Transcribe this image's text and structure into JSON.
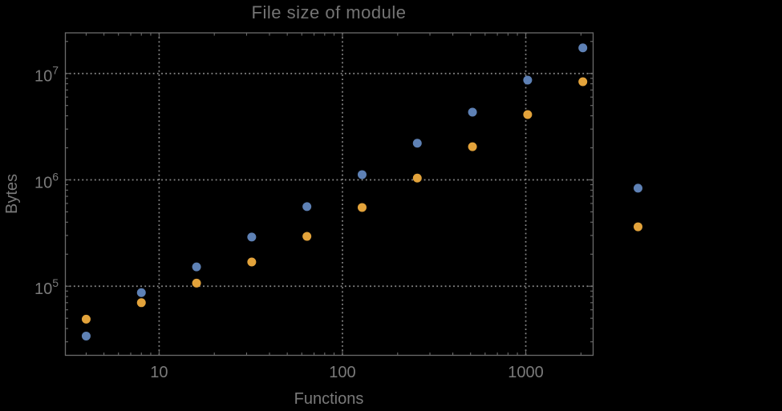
{
  "window": {
    "background": "#000000"
  },
  "chart_data": {
    "type": "scatter",
    "title": "File size of module",
    "xlabel": "Functions",
    "ylabel": "Bytes",
    "x_scale": "log",
    "y_scale": "log",
    "xlim": [
      3.08,
      2330
    ],
    "ylim": [
      22400,
      24100000
    ],
    "grid": "dotted gray lines at decades, both axes",
    "legend_position": "none",
    "frame": "full frame with inward log minor ticks on all four sides",
    "note": "points at x=4096 are drawn outside the right frame edge",
    "x_ticks": [
      {
        "value": 10,
        "label": "10"
      },
      {
        "value": 100,
        "label": "100"
      },
      {
        "value": 1000,
        "label": "1000"
      }
    ],
    "y_ticks": [
      {
        "value": 100000,
        "base": "10",
        "exp": "5"
      },
      {
        "value": 1000000,
        "base": "10",
        "exp": "6"
      },
      {
        "value": 10000000,
        "base": "10",
        "exp": "7"
      }
    ],
    "x": [
      4,
      8,
      16,
      32,
      64,
      128,
      256,
      512,
      1024,
      2048,
      4096
    ],
    "series": [
      {
        "name": "series-1-blue",
        "color": "#5E81B5",
        "values": [
          34000,
          87000,
          152000,
          290000,
          560000,
          1120000,
          2210000,
          4330000,
          8670000,
          17400000,
          835000
        ]
      },
      {
        "name": "series-2-orange",
        "color": "#E3A33B",
        "values": [
          49000,
          70000,
          107000,
          169000,
          294000,
          550000,
          1040000,
          2050000,
          4110000,
          8370000,
          362000
        ]
      }
    ]
  },
  "colors": {
    "background": "#000000",
    "frame": "#6b6b6b",
    "gridline": "#8a8a8a",
    "tick_label": "#7a7a7a",
    "title": "#747474"
  }
}
